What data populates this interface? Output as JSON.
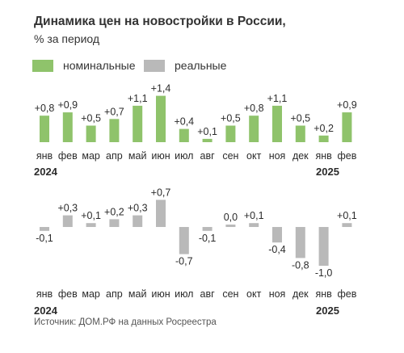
{
  "title": "Динамика цен на новостройки в России,",
  "subtitle": "% за период",
  "legend": [
    {
      "label": "номинальные",
      "color": "#8fc36b"
    },
    {
      "label": "реальные",
      "color": "#b9b9b9"
    }
  ],
  "source": "Источник: ДОМ.РФ на данных Росреестра",
  "chart_data": [
    {
      "type": "bar",
      "series_name": "номинальные",
      "color": "#8fc36b",
      "categories": [
        "янв",
        "фев",
        "мар",
        "апр",
        "май",
        "июн",
        "июл",
        "авг",
        "сен",
        "окт",
        "ноя",
        "дек",
        "янв",
        "фев"
      ],
      "values": [
        0.8,
        0.9,
        0.5,
        0.7,
        1.1,
        1.4,
        0.4,
        0.1,
        0.5,
        0.8,
        1.1,
        0.5,
        0.2,
        0.9
      ],
      "labels": [
        "+0,8",
        "+0,9",
        "+0,5",
        "+0,7",
        "+1,1",
        "+1,4",
        "+0,4",
        "+0,1",
        "+0,5",
        "+0,8",
        "+1,1",
        "+0,5",
        "+0,2",
        "+0,9"
      ],
      "year_labels": [
        "2024",
        "2025"
      ]
    },
    {
      "type": "bar",
      "series_name": "реальные",
      "color": "#b9b9b9",
      "categories": [
        "янв",
        "фев",
        "мар",
        "апр",
        "май",
        "июн",
        "июл",
        "авг",
        "сен",
        "окт",
        "ноя",
        "дек",
        "янв",
        "фев"
      ],
      "values": [
        -0.1,
        0.3,
        0.1,
        0.2,
        0.3,
        0.7,
        -0.7,
        -0.1,
        0.0,
        0.1,
        -0.4,
        -0.8,
        -1.0,
        0.1
      ],
      "labels": [
        "-0,1",
        "+0,3",
        "+0,1",
        "+0,2",
        "+0,3",
        "+0,7",
        "-0,7",
        "-0,1",
        "0,0",
        "+0,1",
        "-0,4",
        "-0,8",
        "-1,0",
        "+0,1"
      ],
      "year_labels": [
        "2024",
        "2025"
      ]
    }
  ]
}
